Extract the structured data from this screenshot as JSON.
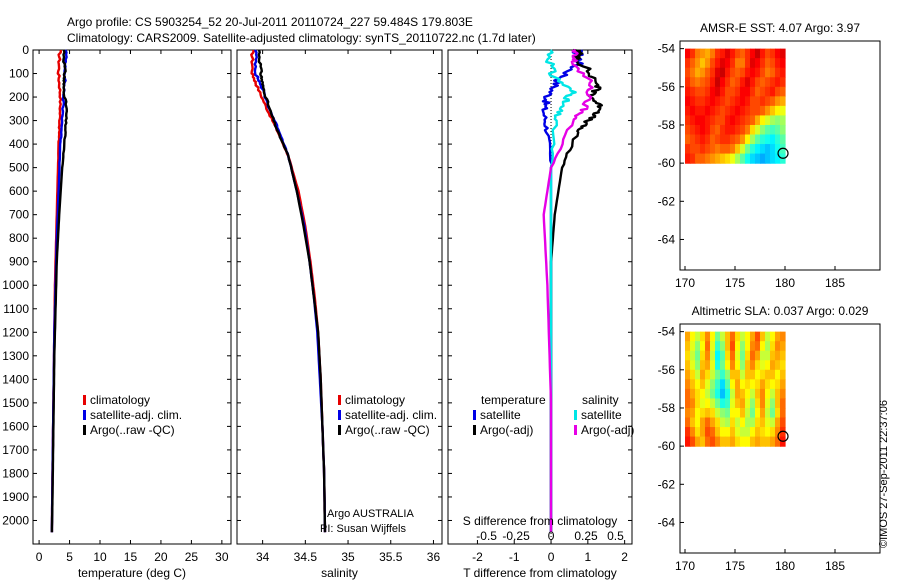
{
  "header": {
    "line1": "Argo profile: CS 5903254_52 20-Jul-2011 20110724_227 59.484S 179.803E",
    "line2": "Climatology: CARS2009. Satellite-adjusted climatology: synTS_20110722.nc (1.7d later)"
  },
  "side_credit": "©IMOS 27-Sep-2011 22:37:06",
  "argo_credit": {
    "line1": "Argo AUSTRALIA",
    "line2": "PI: Susan Wijffels"
  },
  "colors": {
    "climatology": "#e60000",
    "satellite": "#0000e6",
    "argo": "#000000",
    "salinity_satellite": "#00e6e6",
    "salinity_argo": "#e600e6"
  },
  "chart_data": [
    {
      "id": "temperature",
      "type": "line",
      "xlabel": "temperature (deg C)",
      "xlim": [
        -1,
        31.5
      ],
      "xticks": [
        0,
        5,
        10,
        15,
        20,
        25,
        30
      ],
      "ylim": [
        2100,
        0
      ],
      "yticks": [
        0,
        100,
        200,
        300,
        400,
        500,
        600,
        700,
        800,
        900,
        1000,
        1100,
        1200,
        1300,
        1400,
        1500,
        1600,
        1700,
        1800,
        1900,
        2000
      ],
      "legend": [
        "climatology",
        "satellite-adj. clim.",
        "Argo(..raw -QC)"
      ],
      "series": [
        {
          "name": "climatology",
          "color": "#e60000",
          "x": [
            3.4,
            3.2,
            3.5,
            3.4,
            3.2,
            3.0,
            2.8,
            2.6,
            2.5,
            2.4,
            2.3,
            2.2,
            2.1
          ],
          "y": [
            0,
            100,
            200,
            300,
            400,
            600,
            800,
            1000,
            1200,
            1400,
            1600,
            1800,
            2050
          ]
        },
        {
          "name": "satellite-adj. clim.",
          "color": "#0000e6",
          "x": [
            4.4,
            4.3,
            4.0,
            3.8,
            3.5,
            3.2,
            2.9,
            2.7,
            2.5,
            2.4,
            2.3,
            2.2,
            2.1
          ],
          "y": [
            0,
            100,
            200,
            300,
            400,
            600,
            800,
            1000,
            1200,
            1400,
            1600,
            1800,
            2050
          ]
        },
        {
          "name": "Argo(..raw -QC)",
          "color": "#000000",
          "x": [
            4.1,
            4.2,
            4.0,
            4.5,
            4.3,
            3.8,
            3.3,
            2.9,
            2.7,
            2.5,
            2.4,
            2.3,
            2.2,
            2.1
          ],
          "y": [
            0,
            100,
            150,
            250,
            350,
            500,
            700,
            900,
            1100,
            1300,
            1500,
            1700,
            1900,
            2050
          ]
        }
      ]
    },
    {
      "id": "salinity",
      "type": "line",
      "xlabel": "salinity",
      "xlim": [
        33.7,
        36.1
      ],
      "xticks": [
        34,
        34.5,
        35,
        35.5,
        36
      ],
      "ylim": [
        2100,
        0
      ],
      "legend": [
        "climatology",
        "satellite-adj. clim.",
        "Argo(..raw -QC)"
      ],
      "series": [
        {
          "name": "climatology",
          "color": "#e60000",
          "x": [
            33.88,
            33.88,
            33.93,
            34.05,
            34.18,
            34.3,
            34.42,
            34.5,
            34.56,
            34.61,
            34.65,
            34.68,
            34.7,
            34.72,
            34.73
          ],
          "y": [
            0,
            100,
            150,
            250,
            350,
            450,
            600,
            750,
            900,
            1050,
            1200,
            1400,
            1600,
            1800,
            2050
          ]
        },
        {
          "name": "satellite-adj. clim.",
          "color": "#0000e6",
          "x": [
            33.92,
            33.92,
            33.98,
            34.08,
            34.2,
            34.3,
            34.4,
            34.49,
            34.55,
            34.6,
            34.64,
            34.67,
            34.7,
            34.72,
            34.73
          ],
          "y": [
            0,
            100,
            150,
            250,
            350,
            450,
            600,
            750,
            900,
            1050,
            1200,
            1400,
            1600,
            1800,
            2050
          ]
        },
        {
          "name": "Argo(..raw -QC)",
          "color": "#000000",
          "x": [
            33.96,
            33.98,
            34.0,
            34.08,
            34.18,
            34.3,
            34.4,
            34.48,
            34.55,
            34.6,
            34.65,
            34.68,
            34.7,
            34.72,
            34.73
          ],
          "y": [
            0,
            100,
            150,
            250,
            350,
            450,
            600,
            750,
            900,
            1050,
            1200,
            1400,
            1600,
            1800,
            2050
          ]
        }
      ]
    },
    {
      "id": "difference",
      "type": "line",
      "xlabel": "T difference from climatology",
      "xlabel_top": "S difference from climatology",
      "xlim": [
        -2.8,
        2.2
      ],
      "xticks": [
        -2,
        -1,
        0,
        1,
        2
      ],
      "xticks_secondary_labels": [
        "-0.5",
        "-0.25",
        "0",
        "0.25",
        "0.5"
      ],
      "xticks_secondary_values": [
        -1.75,
        -0.95,
        0,
        0.95,
        1.75
      ],
      "ylim": [
        2100,
        0
      ],
      "legend_titles": [
        "temperature",
        "salinity"
      ],
      "legend": [
        "satellite",
        "Argo(-adj)",
        "satellite",
        "Argo(-adj)"
      ],
      "series": [
        {
          "name": "T satellite",
          "color": "#0000e6",
          "x": [
            0.7,
            0.8,
            0.2,
            -0.1,
            -0.2,
            -0.1,
            0.0,
            0.0,
            0.0,
            0.0,
            0.0,
            0.0
          ],
          "y": [
            0,
            50,
            130,
            200,
            260,
            350,
            500,
            800,
            1200,
            1600,
            2000,
            2050
          ]
        },
        {
          "name": "T Argo(-adj)",
          "color": "#000000",
          "x": [
            0.7,
            0.8,
            1.3,
            1.1,
            1.4,
            1.0,
            0.7,
            0.3,
            0.1,
            0.0,
            0.0,
            0.0,
            0.0
          ],
          "y": [
            0,
            50,
            150,
            200,
            250,
            300,
            350,
            500,
            700,
            900,
            1200,
            1600,
            2050
          ]
        },
        {
          "name": "S satellite",
          "color": "#00e6e6",
          "x": [
            0.0,
            0.0,
            0.6,
            0.3,
            0.1,
            0.0,
            0.0,
            0.0,
            0.0,
            0.0
          ],
          "y": [
            0,
            100,
            180,
            230,
            300,
            500,
            800,
            1200,
            1600,
            2050
          ]
        },
        {
          "name": "S Argo(-adj)",
          "color": "#e600e6",
          "x": [
            0.6,
            0.6,
            1.1,
            0.9,
            0.6,
            0.0,
            -0.2,
            -0.1,
            0.0,
            0.0
          ],
          "y": [
            0,
            50,
            150,
            250,
            300,
            500,
            700,
            1000,
            1500,
            2050
          ]
        }
      ]
    },
    {
      "id": "sst_map",
      "type": "heatmap",
      "title": "AMSR-E SST: 4.07  Argo: 3.97",
      "xlim": [
        169.5,
        189.5
      ],
      "ylim": [
        -65.6,
        -53.6
      ],
      "xticks": [
        170,
        175,
        180,
        185
      ],
      "yticks": [
        -54,
        -56,
        -58,
        -60,
        -62,
        -64
      ],
      "data_extent": {
        "lon": [
          170,
          180
        ],
        "lat": [
          -60,
          -54
        ]
      },
      "grid": [
        [
          4.1,
          3.9,
          3.6,
          3.5,
          3.4,
          3.6,
          3.9,
          4.0,
          4.2,
          4.0,
          3.8,
          3.7,
          3.9,
          4.1,
          4.3,
          4.0,
          3.8,
          3.9,
          4.1,
          4.2
        ],
        [
          3.9,
          3.7,
          3.5,
          3.3,
          3.5,
          3.8,
          4.0,
          4.2,
          4.1,
          3.9,
          3.6,
          3.6,
          3.9,
          4.2,
          4.1,
          3.9,
          3.7,
          3.8,
          4.0,
          4.1
        ],
        [
          3.8,
          3.6,
          3.4,
          3.5,
          3.7,
          3.9,
          4.2,
          4.3,
          4.0,
          3.8,
          3.7,
          3.8,
          4.0,
          4.1,
          4.0,
          3.8,
          3.6,
          3.7,
          3.9,
          4.0
        ],
        [
          3.9,
          3.7,
          3.6,
          3.7,
          3.8,
          4.0,
          4.3,
          4.1,
          3.9,
          3.7,
          3.8,
          4.0,
          4.2,
          4.0,
          3.8,
          3.7,
          3.8,
          3.9,
          4.0,
          3.9
        ],
        [
          4.0,
          3.9,
          3.8,
          3.8,
          3.9,
          4.1,
          4.2,
          4.0,
          3.8,
          3.8,
          3.9,
          4.1,
          4.1,
          3.9,
          3.7,
          3.8,
          3.9,
          4.0,
          3.8,
          3.7
        ],
        [
          4.1,
          4.0,
          3.9,
          3.9,
          4.0,
          4.1,
          4.0,
          3.9,
          3.8,
          3.9,
          4.0,
          4.1,
          4.0,
          3.8,
          3.8,
          3.9,
          3.8,
          3.7,
          3.5,
          3.4
        ],
        [
          4.0,
          4.1,
          4.0,
          4.0,
          4.1,
          4.0,
          3.9,
          3.8,
          3.9,
          4.0,
          4.1,
          4.0,
          3.9,
          3.8,
          3.8,
          3.7,
          3.5,
          3.3,
          3.1,
          3.0
        ],
        [
          3.9,
          4.0,
          4.1,
          4.1,
          4.0,
          3.9,
          3.8,
          3.8,
          4.0,
          4.1,
          4.0,
          3.9,
          3.8,
          3.7,
          3.4,
          3.1,
          2.9,
          2.7,
          2.6,
          2.7
        ],
        [
          3.8,
          3.9,
          4.0,
          4.1,
          4.0,
          3.8,
          3.7,
          3.9,
          4.0,
          4.0,
          3.9,
          3.8,
          3.6,
          3.2,
          2.9,
          2.6,
          2.4,
          2.3,
          2.4,
          2.6
        ],
        [
          3.7,
          3.8,
          3.9,
          4.0,
          3.9,
          3.7,
          3.8,
          3.9,
          3.9,
          3.8,
          3.7,
          3.5,
          3.1,
          2.7,
          2.4,
          2.2,
          2.1,
          2.0,
          2.2,
          2.4
        ],
        [
          3.9,
          3.8,
          3.8,
          3.9,
          3.8,
          3.7,
          3.6,
          3.7,
          3.7,
          3.6,
          3.3,
          2.9,
          2.5,
          2.2,
          2.0,
          1.9,
          1.8,
          1.9,
          2.1,
          2.3
        ],
        [
          4.0,
          3.9,
          3.7,
          3.7,
          3.6,
          3.5,
          3.4,
          3.3,
          3.2,
          3.0,
          2.7,
          2.4,
          2.1,
          1.9,
          1.8,
          1.7,
          1.8,
          1.9,
          2.0,
          2.2
        ]
      ],
      "argo_marker": {
        "lon": 179.803,
        "lat": -59.484
      }
    },
    {
      "id": "sla_map",
      "type": "heatmap",
      "title": "Altimetric SLA: 0.037  Argo: 0.029",
      "xlim": [
        169.5,
        189.5
      ],
      "ylim": [
        -65.6,
        -53.6
      ],
      "xticks": [
        170,
        175,
        180,
        185
      ],
      "yticks": [
        -54,
        -56,
        -58,
        -60,
        -62,
        -64
      ],
      "data_extent": {
        "lon": [
          170,
          180
        ],
        "lat": [
          -60,
          -54
        ]
      },
      "grid": [
        [
          0.05,
          0.02,
          0.0,
          0.03,
          0.06,
          0.02,
          -0.03,
          0.0,
          0.04,
          0.07,
          0.03,
          0.0,
          0.02,
          0.05,
          0.08,
          0.04,
          0.0,
          0.02,
          0.05,
          0.06
        ],
        [
          0.04,
          0.01,
          -0.02,
          0.02,
          0.07,
          0.01,
          -0.05,
          -0.02,
          0.04,
          0.08,
          0.02,
          -0.02,
          0.02,
          0.06,
          0.07,
          0.02,
          -0.01,
          0.03,
          0.06,
          0.05
        ],
        [
          0.03,
          0.0,
          -0.03,
          0.03,
          0.06,
          0.0,
          -0.07,
          -0.04,
          0.03,
          0.07,
          0.01,
          -0.03,
          0.03,
          0.07,
          0.05,
          0.0,
          0.0,
          0.04,
          0.05,
          0.04
        ],
        [
          0.04,
          0.01,
          -0.02,
          0.04,
          0.05,
          0.01,
          -0.06,
          -0.03,
          0.02,
          0.06,
          0.02,
          -0.02,
          0.04,
          0.06,
          0.03,
          0.01,
          0.02,
          0.05,
          0.04,
          0.03
        ],
        [
          0.05,
          0.03,
          0.0,
          0.05,
          0.03,
          0.0,
          -0.03,
          -0.05,
          -0.02,
          0.04,
          0.04,
          0.0,
          0.04,
          0.04,
          0.02,
          0.03,
          0.04,
          0.04,
          0.02,
          0.04
        ],
        [
          0.06,
          0.04,
          0.02,
          0.04,
          0.01,
          -0.02,
          -0.05,
          -0.08,
          -0.04,
          0.02,
          0.05,
          0.02,
          0.03,
          0.02,
          0.03,
          0.05,
          0.03,
          0.02,
          0.03,
          0.05
        ],
        [
          0.07,
          0.05,
          0.03,
          0.02,
          0.0,
          -0.03,
          -0.06,
          -0.09,
          -0.06,
          0.0,
          0.05,
          0.04,
          0.02,
          0.0,
          0.04,
          0.06,
          0.02,
          0.0,
          0.04,
          0.06
        ],
        [
          0.07,
          0.06,
          0.03,
          0.01,
          0.02,
          0.0,
          -0.03,
          -0.06,
          -0.05,
          0.01,
          0.04,
          0.05,
          0.01,
          -0.02,
          0.03,
          0.06,
          0.01,
          -0.02,
          0.04,
          0.07
        ],
        [
          0.06,
          0.05,
          0.02,
          0.03,
          0.04,
          0.03,
          0.0,
          -0.02,
          -0.03,
          0.02,
          0.02,
          0.04,
          0.0,
          -0.03,
          0.02,
          0.05,
          0.0,
          -0.03,
          0.03,
          0.07
        ],
        [
          0.07,
          0.04,
          0.02,
          0.05,
          0.07,
          0.05,
          0.03,
          0.0,
          -0.01,
          0.03,
          0.0,
          0.02,
          -0.01,
          -0.01,
          0.03,
          0.04,
          0.01,
          0.0,
          0.05,
          0.08
        ],
        [
          0.09,
          0.06,
          0.03,
          0.05,
          0.08,
          0.07,
          0.04,
          0.02,
          0.02,
          0.04,
          0.01,
          0.0,
          0.0,
          0.02,
          0.04,
          0.03,
          0.02,
          0.03,
          0.06,
          0.09
        ],
        [
          0.1,
          0.08,
          0.05,
          0.04,
          0.07,
          0.08,
          0.06,
          0.04,
          0.04,
          0.05,
          0.03,
          0.02,
          0.02,
          0.04,
          0.05,
          0.04,
          0.04,
          0.05,
          0.07,
          0.1
        ]
      ],
      "argo_marker": {
        "lon": 179.803,
        "lat": -59.484
      }
    }
  ]
}
